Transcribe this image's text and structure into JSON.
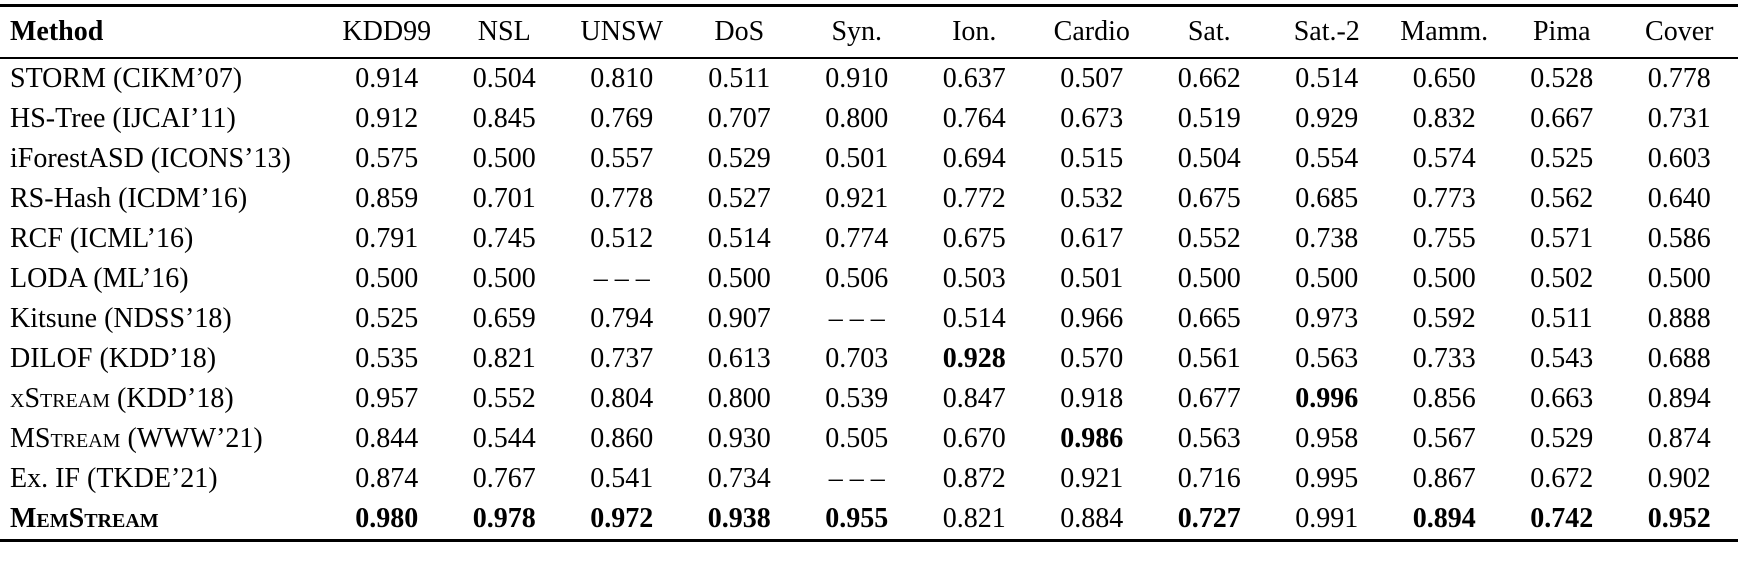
{
  "table": {
    "columns": [
      "Method",
      "KDD99",
      "NSL",
      "UNSW",
      "DoS",
      "Syn.",
      "Ion.",
      "Cardio",
      "Sat.",
      "Sat.-2",
      "Mamm.",
      "Pima",
      "Cover"
    ],
    "rows": [
      {
        "method": "STORM (CIKM’07)",
        "smallcaps": false,
        "bold": false,
        "values": [
          "0.914",
          "0.504",
          "0.810",
          "0.511",
          "0.910",
          "0.637",
          "0.507",
          "0.662",
          "0.514",
          "0.650",
          "0.528",
          "0.778"
        ],
        "bold_values": [
          false,
          false,
          false,
          false,
          false,
          false,
          false,
          false,
          false,
          false,
          false,
          false
        ]
      },
      {
        "method": "HS-Tree (IJCAI’11)",
        "smallcaps": false,
        "bold": false,
        "values": [
          "0.912",
          "0.845",
          "0.769",
          "0.707",
          "0.800",
          "0.764",
          "0.673",
          "0.519",
          "0.929",
          "0.832",
          "0.667",
          "0.731"
        ],
        "bold_values": [
          false,
          false,
          false,
          false,
          false,
          false,
          false,
          false,
          false,
          false,
          false,
          false
        ]
      },
      {
        "method": "iForestASD (ICONS’13)",
        "smallcaps": false,
        "bold": false,
        "values": [
          "0.575",
          "0.500",
          "0.557",
          "0.529",
          "0.501",
          "0.694",
          "0.515",
          "0.504",
          "0.554",
          "0.574",
          "0.525",
          "0.603"
        ],
        "bold_values": [
          false,
          false,
          false,
          false,
          false,
          false,
          false,
          false,
          false,
          false,
          false,
          false
        ]
      },
      {
        "method": "RS-Hash (ICDM’16)",
        "smallcaps": false,
        "bold": false,
        "values": [
          "0.859",
          "0.701",
          "0.778",
          "0.527",
          "0.921",
          "0.772",
          "0.532",
          "0.675",
          "0.685",
          "0.773",
          "0.562",
          "0.640"
        ],
        "bold_values": [
          false,
          false,
          false,
          false,
          false,
          false,
          false,
          false,
          false,
          false,
          false,
          false
        ]
      },
      {
        "method": "RCF (ICML’16)",
        "smallcaps": false,
        "bold": false,
        "values": [
          "0.791",
          "0.745",
          "0.512",
          "0.514",
          "0.774",
          "0.675",
          "0.617",
          "0.552",
          "0.738",
          "0.755",
          "0.571",
          "0.586"
        ],
        "bold_values": [
          false,
          false,
          false,
          false,
          false,
          false,
          false,
          false,
          false,
          false,
          false,
          false
        ]
      },
      {
        "method": "LODA (ML’16)",
        "smallcaps": false,
        "bold": false,
        "values": [
          "0.500",
          "0.500",
          "– – –",
          "0.500",
          "0.506",
          "0.503",
          "0.501",
          "0.500",
          "0.500",
          "0.500",
          "0.502",
          "0.500"
        ],
        "bold_values": [
          false,
          false,
          false,
          false,
          false,
          false,
          false,
          false,
          false,
          false,
          false,
          false
        ]
      },
      {
        "method": "Kitsune (NDSS’18)",
        "smallcaps": false,
        "bold": false,
        "values": [
          "0.525",
          "0.659",
          "0.794",
          "0.907",
          "– – –",
          "0.514",
          "0.966",
          "0.665",
          "0.973",
          "0.592",
          "0.511",
          "0.888"
        ],
        "bold_values": [
          false,
          false,
          false,
          false,
          false,
          false,
          false,
          false,
          false,
          false,
          false,
          false
        ]
      },
      {
        "method": "DILOF (KDD’18)",
        "smallcaps": false,
        "bold": false,
        "values": [
          "0.535",
          "0.821",
          "0.737",
          "0.613",
          "0.703",
          "0.928",
          "0.570",
          "0.561",
          "0.563",
          "0.733",
          "0.543",
          "0.688"
        ],
        "bold_values": [
          false,
          false,
          false,
          false,
          false,
          true,
          false,
          false,
          false,
          false,
          false,
          false
        ]
      },
      {
        "method": "xStream (KDD’18)",
        "smallcaps": true,
        "bold": false,
        "values": [
          "0.957",
          "0.552",
          "0.804",
          "0.800",
          "0.539",
          "0.847",
          "0.918",
          "0.677",
          "0.996",
          "0.856",
          "0.663",
          "0.894"
        ],
        "bold_values": [
          false,
          false,
          false,
          false,
          false,
          false,
          false,
          false,
          true,
          false,
          false,
          false
        ]
      },
      {
        "method": "MStream (WWW’21)",
        "smallcaps": true,
        "bold": false,
        "values": [
          "0.844",
          "0.544",
          "0.860",
          "0.930",
          "0.505",
          "0.670",
          "0.986",
          "0.563",
          "0.958",
          "0.567",
          "0.529",
          "0.874"
        ],
        "bold_values": [
          false,
          false,
          false,
          false,
          false,
          false,
          true,
          false,
          false,
          false,
          false,
          false
        ]
      },
      {
        "method": "Ex. IF (TKDE’21)",
        "smallcaps": false,
        "bold": false,
        "values": [
          "0.874",
          "0.767",
          "0.541",
          "0.734",
          "– – –",
          "0.872",
          "0.921",
          "0.716",
          "0.995",
          "0.867",
          "0.672",
          "0.902"
        ],
        "bold_values": [
          false,
          false,
          false,
          false,
          false,
          false,
          false,
          false,
          false,
          false,
          false,
          false
        ]
      },
      {
        "method": "MemStream",
        "smallcaps": true,
        "bold": true,
        "values": [
          "0.980",
          "0.978",
          "0.972",
          "0.938",
          "0.955",
          "0.821",
          "0.884",
          "0.727",
          "0.991",
          "0.894",
          "0.742",
          "0.952"
        ],
        "bold_values": [
          true,
          true,
          true,
          true,
          true,
          false,
          false,
          true,
          false,
          true,
          true,
          true
        ]
      }
    ]
  }
}
